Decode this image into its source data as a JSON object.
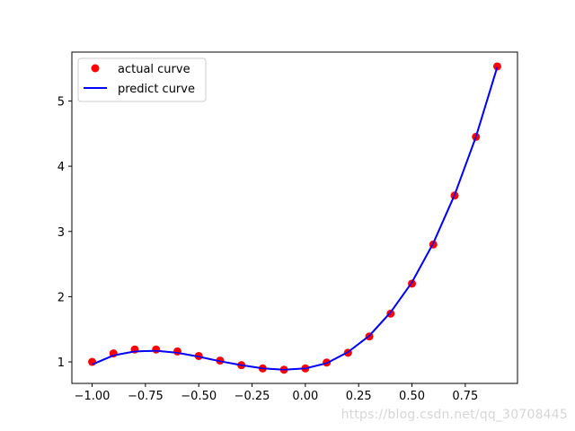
{
  "chart_data": {
    "type": "scatter",
    "xlim": [
      -1.095,
      0.995
    ],
    "ylim": [
      0.67,
      5.75
    ],
    "xticks": [
      -1.0,
      -0.75,
      -0.5,
      -0.25,
      0.0,
      0.25,
      0.5,
      0.75
    ],
    "xtick_labels": [
      "−1.00",
      "−0.75",
      "−0.50",
      "−0.25",
      "0.00",
      "0.25",
      "0.50",
      "0.75"
    ],
    "yticks": [
      1,
      2,
      3,
      4,
      5
    ],
    "ytick_labels": [
      "1",
      "2",
      "3",
      "4",
      "5"
    ],
    "grid": false,
    "legend_position": "top-left",
    "series": [
      {
        "name": "actual curve",
        "kind": "scatter",
        "color": "#ff0000",
        "x": [
          -1.0,
          -0.9,
          -0.8,
          -0.7,
          -0.6,
          -0.5,
          -0.4,
          -0.3,
          -0.2,
          -0.1,
          0.0,
          0.1,
          0.2,
          0.3,
          0.4,
          0.5,
          0.6,
          0.7,
          0.8,
          0.9
        ],
        "y": [
          1.0,
          1.13,
          1.19,
          1.19,
          1.16,
          1.09,
          1.02,
          0.95,
          0.9,
          0.88,
          0.9,
          0.99,
          1.14,
          1.39,
          1.74,
          2.2,
          2.8,
          3.55,
          4.45,
          5.53
        ]
      },
      {
        "name": "predict curve",
        "kind": "line",
        "color": "#0000ff",
        "x": [
          -1.0,
          -0.9,
          -0.8,
          -0.7,
          -0.6,
          -0.5,
          -0.4,
          -0.3,
          -0.2,
          -0.1,
          0.0,
          0.1,
          0.2,
          0.3,
          0.4,
          0.5,
          0.6,
          0.7,
          0.8,
          0.9
        ],
        "y": [
          0.96,
          1.1,
          1.16,
          1.17,
          1.14,
          1.08,
          1.01,
          0.95,
          0.9,
          0.88,
          0.9,
          0.98,
          1.15,
          1.4,
          1.76,
          2.22,
          2.82,
          3.56,
          4.45,
          5.52
        ]
      }
    ]
  },
  "watermark": "https://blog.csdn.net/qq_30708445"
}
